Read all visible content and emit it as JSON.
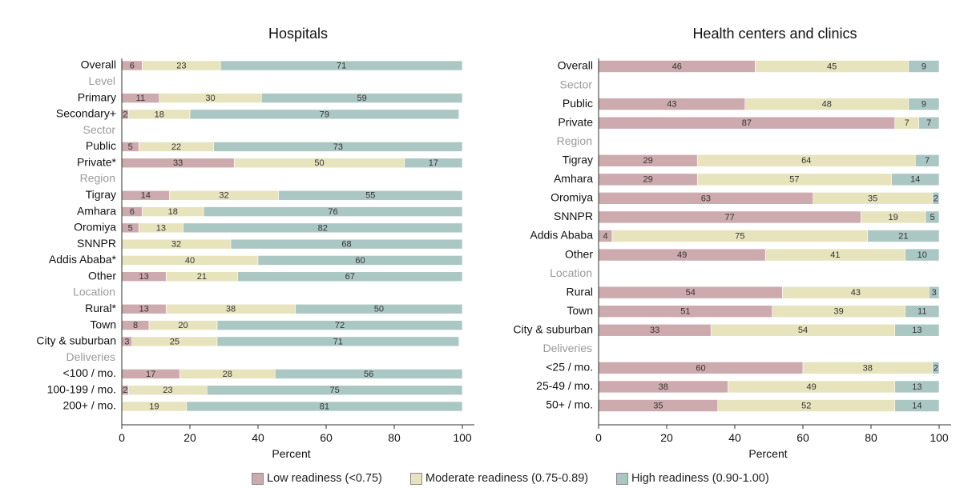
{
  "colors": {
    "low": "#cdaaae",
    "moderate": "#e6e3bd",
    "high": "#abc7c4",
    "group_label": "#9a9a9a",
    "text": "#111111"
  },
  "legend": [
    {
      "key": "low",
      "label": "Low readiness (<0.75)"
    },
    {
      "key": "moderate",
      "label": "Moderate readiness (0.75-0.89)"
    },
    {
      "key": "high",
      "label": "High readiness (0.90-1.00)"
    }
  ],
  "chart_data": [
    {
      "type": "bar",
      "orientation": "horizontal",
      "stacked": true,
      "title": "Hospitals",
      "xlabel": "Percent",
      "xlim": [
        0,
        100
      ],
      "xticks": [
        0,
        20,
        40,
        60,
        80,
        100
      ],
      "series": [
        "Low readiness (<0.75)",
        "Moderate readiness (0.75-0.89)",
        "High readiness (0.90-1.00)"
      ],
      "rows": [
        {
          "label": "Overall",
          "values": [
            6,
            23,
            71
          ]
        },
        {
          "label": "Level",
          "group": true
        },
        {
          "label": "Primary",
          "values": [
            11,
            30,
            59
          ]
        },
        {
          "label": "Secondary+",
          "values": [
            2,
            18,
            79
          ]
        },
        {
          "label": "Sector",
          "group": true
        },
        {
          "label": "Public",
          "values": [
            5,
            22,
            73
          ]
        },
        {
          "label": "Private*",
          "values": [
            33,
            50,
            17
          ]
        },
        {
          "label": "Region",
          "group": true
        },
        {
          "label": "Tigray",
          "values": [
            14,
            32,
            55
          ]
        },
        {
          "label": "Amhara",
          "values": [
            6,
            18,
            76
          ]
        },
        {
          "label": "Oromiya",
          "values": [
            5,
            13,
            82
          ]
        },
        {
          "label": "SNNPR",
          "values": [
            0,
            32,
            68
          ]
        },
        {
          "label": "Addis Ababa*",
          "values": [
            0,
            40,
            60
          ]
        },
        {
          "label": "Other",
          "values": [
            13,
            21,
            67
          ]
        },
        {
          "label": "Location",
          "group": true
        },
        {
          "label": "Rural*",
          "values": [
            13,
            38,
            50
          ]
        },
        {
          "label": "Town",
          "values": [
            8,
            20,
            72
          ]
        },
        {
          "label": "City & suburban",
          "values": [
            3,
            25,
            71
          ]
        },
        {
          "label": "Deliveries",
          "group": true
        },
        {
          "label": "<100 / mo.",
          "values": [
            17,
            28,
            56
          ]
        },
        {
          "label": "100-199 / mo.",
          "values": [
            2,
            23,
            75
          ]
        },
        {
          "label": "200+ / mo.",
          "values": [
            0,
            19,
            81
          ]
        }
      ]
    },
    {
      "type": "bar",
      "orientation": "horizontal",
      "stacked": true,
      "title": "Health centers and clinics",
      "xlabel": "Percent",
      "xlim": [
        0,
        100
      ],
      "xticks": [
        0,
        20,
        40,
        60,
        80,
        100
      ],
      "series": [
        "Low readiness (<0.75)",
        "Moderate readiness (0.75-0.89)",
        "High readiness (0.90-1.00)"
      ],
      "rows": [
        {
          "label": "Overall",
          "values": [
            46,
            45,
            9
          ]
        },
        {
          "label": "Sector",
          "group": true
        },
        {
          "label": "Public",
          "values": [
            43,
            48,
            9
          ]
        },
        {
          "label": "Private",
          "values": [
            87,
            7,
            7
          ]
        },
        {
          "label": "Region",
          "group": true
        },
        {
          "label": "Tigray",
          "values": [
            29,
            64,
            7
          ]
        },
        {
          "label": "Amhara",
          "values": [
            29,
            57,
            14
          ]
        },
        {
          "label": "Oromiya",
          "values": [
            63,
            35,
            2
          ]
        },
        {
          "label": "SNNPR",
          "values": [
            77,
            19,
            5
          ]
        },
        {
          "label": "Addis Ababa",
          "values": [
            4,
            75,
            21
          ]
        },
        {
          "label": "Other",
          "values": [
            49,
            41,
            10
          ]
        },
        {
          "label": "Location",
          "group": true
        },
        {
          "label": "Rural",
          "values": [
            54,
            43,
            3
          ]
        },
        {
          "label": "Town",
          "values": [
            51,
            39,
            11
          ]
        },
        {
          "label": "City & suburban",
          "values": [
            33,
            54,
            13
          ]
        },
        {
          "label": "Deliveries",
          "group": true
        },
        {
          "label": "<25 / mo.",
          "values": [
            60,
            38,
            2
          ]
        },
        {
          "label": "25-49 / mo.",
          "values": [
            38,
            49,
            13
          ]
        },
        {
          "label": "50+ / mo.",
          "values": [
            35,
            52,
            14
          ]
        }
      ]
    }
  ]
}
